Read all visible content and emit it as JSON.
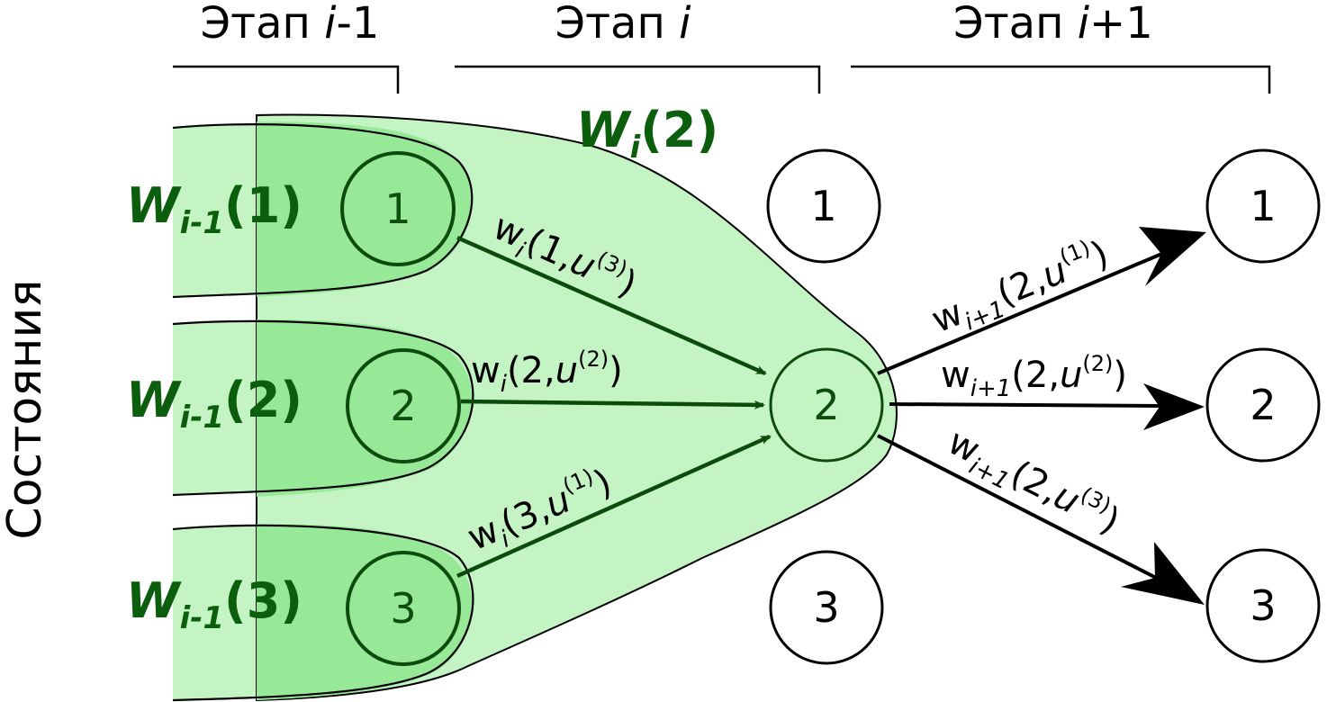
{
  "stages": [
    {
      "prefix": "Этап ",
      "var": "i",
      "suffix": "-1"
    },
    {
      "prefix": "Этап ",
      "var": "i",
      "suffix": ""
    },
    {
      "prefix": "Этап ",
      "var": "i",
      "suffix": "+1"
    }
  ],
  "axis_label": "Состояния",
  "left_nodes": [
    "1",
    "2",
    "3"
  ],
  "middle_nodes": [
    "1",
    "2",
    "3"
  ],
  "right_nodes": [
    "1",
    "2",
    "3"
  ],
  "prev_values": [
    {
      "main": "W",
      "sub": "i-1",
      "arg": "(1)"
    },
    {
      "main": "W",
      "sub": "i-1",
      "arg": "(2)"
    },
    {
      "main": "W",
      "sub": "i-1",
      "arg": "(3)"
    }
  ],
  "current_value": {
    "main": "W",
    "sub": "i",
    "arg": "(2)"
  },
  "incoming_edges": [
    {
      "w": "w",
      "sub": "i",
      "args": "(1,",
      "u": "u",
      "sup": "(3)",
      "close": ")"
    },
    {
      "w": "w",
      "sub": "i",
      "args": "(2,",
      "u": "u",
      "sup": "(2)",
      "close": ")"
    },
    {
      "w": "w",
      "sub": "i",
      "args": "(3,",
      "u": "u",
      "sup": "(1)",
      "close": ")"
    }
  ],
  "outgoing_edges": [
    {
      "w": "w",
      "sub": "i+1",
      "args": "(2,",
      "u": "u",
      "sup": "(1)",
      "close": ")"
    },
    {
      "w": "w",
      "sub": "i+1",
      "args": "(2,",
      "u": "u",
      "sup": "(2)",
      "close": ")"
    },
    {
      "w": "w",
      "sub": "i+1",
      "args": "(2,",
      "u": "u",
      "sup": "(3)",
      "close": ")"
    }
  ],
  "colors": {
    "light_green": "#c4f4c4",
    "mid_green": "#97e897",
    "dark_green_text": "#0b5e0b",
    "arrow_dark": "#0d4a0d",
    "arrow_black": "#000000"
  }
}
